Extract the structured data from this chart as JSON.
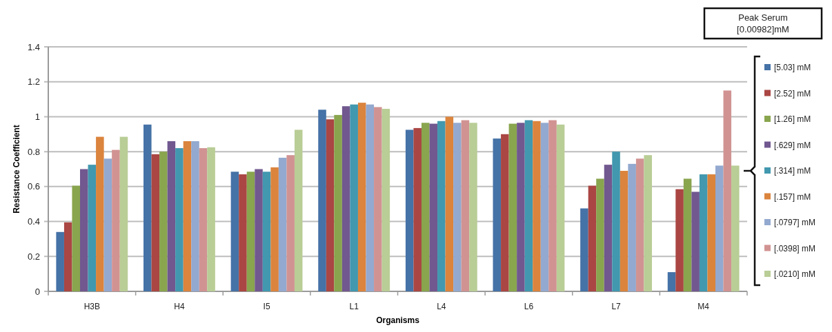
{
  "chart_data": {
    "type": "bar",
    "xlabel": "Organisms",
    "ylabel": "Resistance Coefficient",
    "categories": [
      "H3B",
      "H4",
      "I5",
      "L1",
      "L4",
      "L6",
      "L7",
      "M4"
    ],
    "ylim": [
      0,
      1.4
    ],
    "yticks": [
      0,
      0.2,
      0.4,
      0.6,
      0.8,
      1,
      1.2,
      1.4
    ],
    "grid": "y",
    "legend": "right",
    "annotations": [
      "Peak Serum [0.00982]mM"
    ],
    "series": [
      {
        "name": "[5.03] mM",
        "color": "#4572a7",
        "values": [
          0.34,
          0.955,
          0.685,
          1.04,
          0.925,
          0.875,
          0.475,
          0.11
        ]
      },
      {
        "name": "[2.52] mM",
        "color": "#aa4643",
        "values": [
          0.395,
          0.785,
          0.67,
          0.985,
          0.935,
          0.9,
          0.605,
          0.585
        ]
      },
      {
        "name": "[1.26] mM",
        "color": "#89a54e",
        "values": [
          0.605,
          0.8,
          0.685,
          1.01,
          0.965,
          0.96,
          0.645,
          0.645
        ]
      },
      {
        "name": "[.629] mM",
        "color": "#71588f",
        "values": [
          0.7,
          0.86,
          0.7,
          1.06,
          0.96,
          0.965,
          0.725,
          0.57
        ]
      },
      {
        "name": "[.314] mM",
        "color": "#4198af",
        "values": [
          0.725,
          0.82,
          0.685,
          1.07,
          0.975,
          0.98,
          0.8,
          0.67
        ]
      },
      {
        "name": "[.157] mM",
        "color": "#db843d",
        "values": [
          0.885,
          0.86,
          0.71,
          1.08,
          1.0,
          0.975,
          0.69,
          0.67
        ]
      },
      {
        "name": "[.0797] mM",
        "color": "#93a9cf",
        "values": [
          0.76,
          0.86,
          0.765,
          1.07,
          0.965,
          0.965,
          0.73,
          0.72
        ]
      },
      {
        "name": "[.0398] mM",
        "color": "#d19392",
        "values": [
          0.81,
          0.82,
          0.78,
          1.055,
          0.98,
          0.98,
          0.76,
          1.15
        ]
      },
      {
        "name": "[.0210] mM",
        "color": "#b9cd96",
        "values": [
          0.885,
          0.825,
          0.925,
          1.045,
          0.965,
          0.955,
          0.78,
          0.72
        ]
      }
    ]
  }
}
